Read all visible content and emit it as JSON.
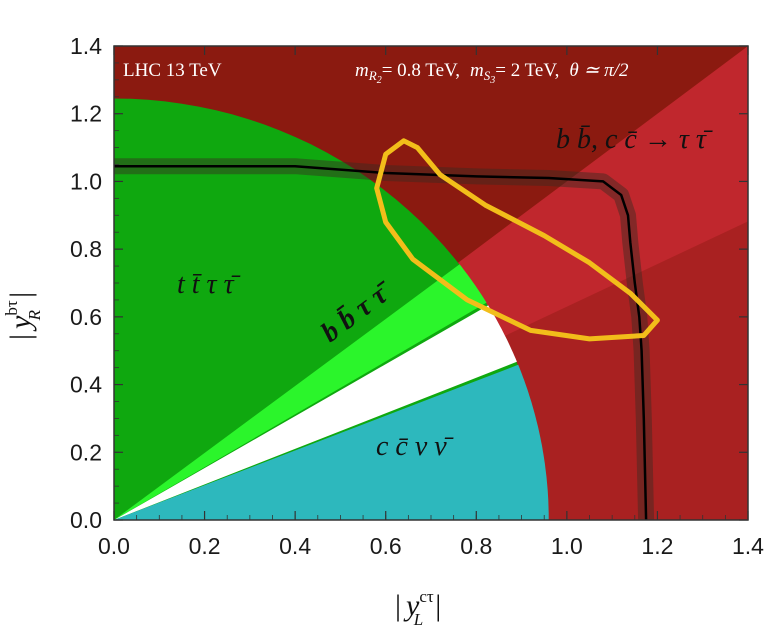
{
  "chart_data": {
    "type": "region-plot",
    "title": "",
    "xlabel": "| y_L^{cτ} |",
    "ylabel": "| y_R^{bτ} |",
    "xlabel_parts": {
      "left": "|",
      "var": "y",
      "sup": "cτ",
      "sub": "L",
      "right": "|"
    },
    "ylabel_parts": {
      "left": "|",
      "var": "y",
      "sup": "bτ",
      "sub": "R",
      "right": "|"
    },
    "xlim": [
      0.0,
      1.4
    ],
    "ylim": [
      0.0,
      1.4
    ],
    "xticks": [
      "0.0",
      "0.2",
      "0.4",
      "0.6",
      "0.8",
      "1.0",
      "1.2",
      "1.4"
    ],
    "yticks": [
      "0.0",
      "0.2",
      "0.4",
      "0.6",
      "0.8",
      "1.0",
      "1.2",
      "1.4"
    ],
    "xtick_values": [
      0,
      0.2,
      0.4,
      0.6,
      0.8,
      1.0,
      1.2,
      1.4
    ],
    "ytick_values": [
      0,
      0.2,
      0.4,
      0.6,
      0.8,
      1.0,
      1.2,
      1.4
    ],
    "annotations": {
      "energy": "LHC 13 TeV",
      "parameters": "m_{R2}= 0.8 TeV,  m_{S3}= 2 TeV,  θ ≃ π/2",
      "param1_pre": "m",
      "param1_sub": "R",
      "param1_subsub": "2",
      "param1_post": "= 0.8 TeV,",
      "param2_pre": "m",
      "param2_sub": "S",
      "param2_subsub": "3",
      "param2_post": "= 2 TeV,",
      "param3": "θ ≃ π/2"
    },
    "region_labels": {
      "ttautau": "t t̄ τ τ̄",
      "bbtautau": "b b̄ τ τ̄",
      "ccnunu": "c c̄ ν ν̄",
      "bb_cc_tautau": "b b̄,  c c̄ → τ τ̄"
    },
    "colors": {
      "dark_red": "#8b1a10",
      "red": "#c0272d",
      "dark_green": "#0fa80f",
      "light_green": "#2bf52b",
      "teal": "#2db8bd",
      "white_gap": "#ffffff",
      "yellow": "#f2be1a",
      "black_line": "#000000",
      "gray_band": "#3a2a22"
    },
    "regions": {
      "ttautau_green": {
        "xmax_at_y0": 0.96,
        "ymax": 1.245,
        "corner_x": 0.84,
        "lower_slope": 0.955
      },
      "bbtautau_light_green_slope": 0.77,
      "ccnunu_teal": {
        "slope": 0.525,
        "xmax": 0.96
      },
      "red_diagonal_slope": 1.0,
      "dark_band_slope": 0.63
    },
    "black_contour": [
      [
        0,
        1.045
      ],
      [
        0.4,
        1.045
      ],
      [
        0.6,
        1.025
      ],
      [
        0.8,
        1.015
      ],
      [
        0.96,
        1.01
      ],
      [
        1.08,
        1.0
      ],
      [
        1.12,
        0.96
      ],
      [
        1.135,
        0.9
      ],
      [
        1.14,
        0.82
      ],
      [
        1.15,
        0.7
      ],
      [
        1.16,
        0.6
      ],
      [
        1.165,
        0.5
      ],
      [
        1.17,
        0.3
      ],
      [
        1.175,
        0.0
      ]
    ],
    "yellow_contour": [
      [
        0.64,
        1.12
      ],
      [
        0.67,
        1.1
      ],
      [
        0.72,
        1.02
      ],
      [
        0.82,
        0.93
      ],
      [
        0.95,
        0.84
      ],
      [
        1.05,
        0.76
      ],
      [
        1.14,
        0.67
      ],
      [
        1.2,
        0.59
      ],
      [
        1.17,
        0.545
      ],
      [
        1.05,
        0.535
      ],
      [
        0.92,
        0.56
      ],
      [
        0.78,
        0.65
      ],
      [
        0.66,
        0.77
      ],
      [
        0.6,
        0.88
      ],
      [
        0.58,
        0.98
      ],
      [
        0.6,
        1.08
      ]
    ]
  }
}
